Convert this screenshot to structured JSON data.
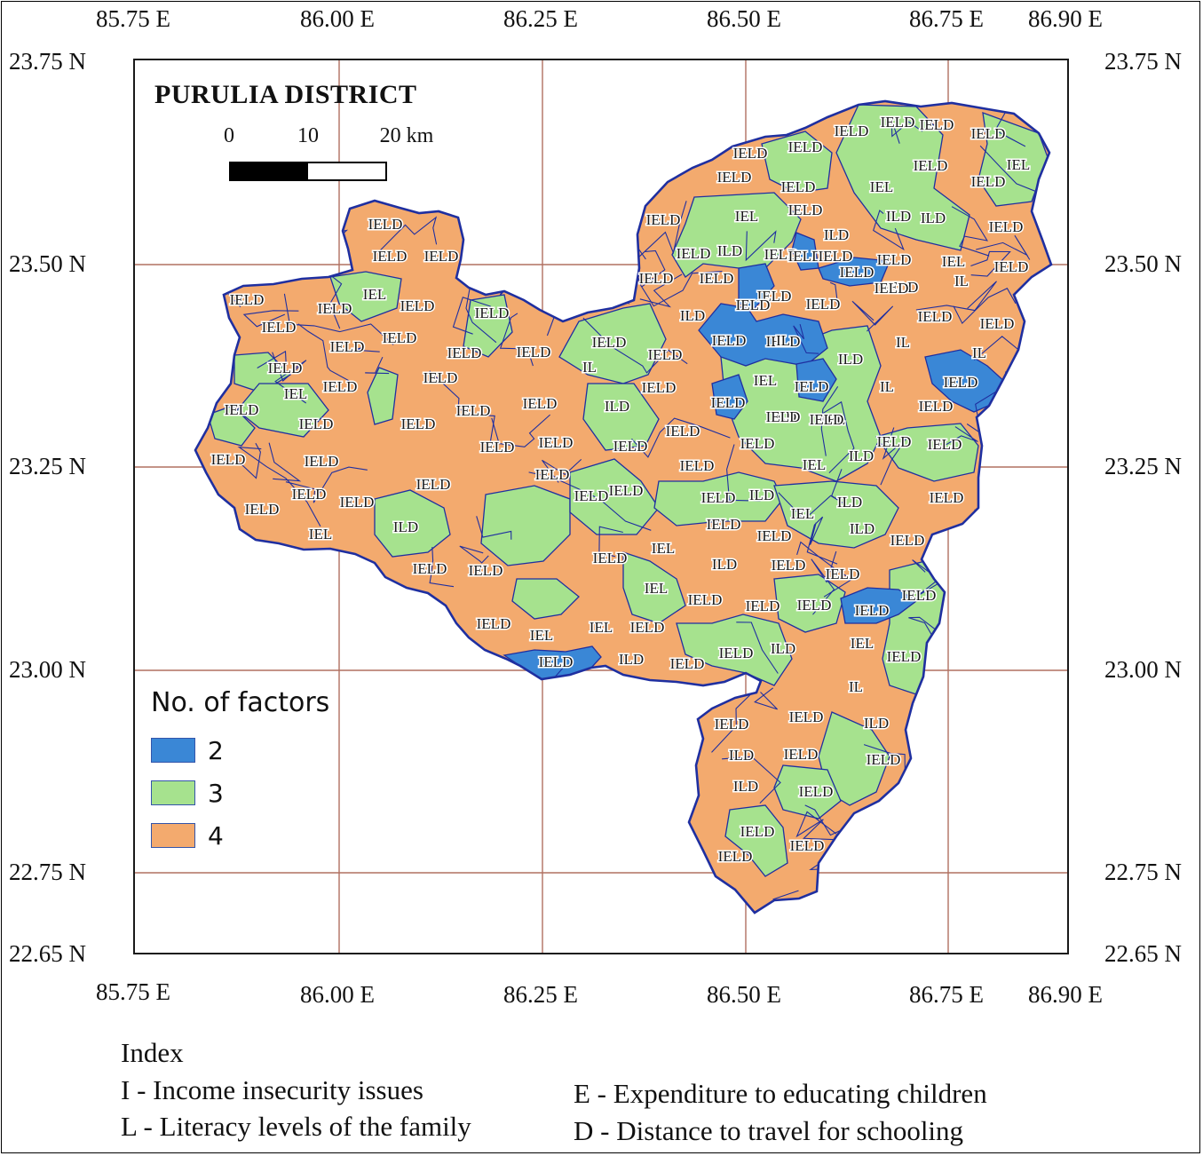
{
  "map": {
    "title": "PURULIA DISTRICT",
    "scale_bar": {
      "labels": [
        "0",
        "10",
        "20 km"
      ]
    },
    "longitude_ticks": [
      "85.75 E",
      "86.00 E",
      "86.25 E",
      "86.50 E",
      "86.75 E",
      "86.90 E"
    ],
    "latitude_ticks": [
      "23.75 N",
      "23.50 N",
      "23.25 N",
      "23.00 N",
      "22.75 N",
      "22.65 N"
    ],
    "gridline_color": "#b07060",
    "boundary_color": "#1f2fa0"
  },
  "legend": {
    "title": "No. of factors",
    "items": [
      {
        "label": "2",
        "color": "#3a87d6"
      },
      {
        "label": "3",
        "color": "#a6e28e"
      },
      {
        "label": "4",
        "color": "#f3aa6e"
      }
    ]
  },
  "index": {
    "heading": "Index",
    "entries": [
      "I -  Income insecurity issues",
      "L - Literacy levels of the family",
      "E - Expenditure to educating children",
      "D - Distance to travel for schooling"
    ]
  },
  "region_labels": [
    "IELD",
    "IELD",
    "IELD",
    "IELD",
    "IEL",
    "IELD",
    "IELD",
    "IELD",
    "IELD",
    "IELD",
    "IELD",
    "IELD",
    "IELD",
    "IELD",
    "IELD",
    "IEL",
    "IELD",
    "IELD",
    "IELD",
    "IELD",
    "IELD",
    "IELD",
    "IELD",
    "IELD",
    "IELD",
    "IELD",
    "IELD",
    "IELD",
    "ILD",
    "IELD",
    "IELD",
    "IELD",
    "IEL",
    "IELD",
    "IELD",
    "IELD",
    "IEL",
    "IELD",
    "IELD",
    "IELD",
    "IELD",
    "IELD",
    "IL",
    "IELD",
    "IELD",
    "ILD",
    "IELD",
    "IELD",
    "IELD",
    "IELD",
    "IELD",
    "IELD",
    "IELD",
    "IEL",
    "IEL",
    "ILD",
    "IELD",
    "IELD",
    "IELD",
    "IELD",
    "IEL",
    "IELD",
    "ILD",
    "IELD",
    "IELD",
    "ILD",
    "IELD",
    "IELD",
    "IELD",
    "IELD",
    "IELD",
    "IEL",
    "IELD",
    "ILD",
    "IELD",
    "IELD",
    "IELD",
    "IELD",
    "ILD",
    "IELD",
    "IELD",
    "IELD",
    "IELD",
    "IELD",
    "IELD",
    "IEL",
    "IELD",
    "IELD",
    "IEL",
    "ILD",
    "ILD",
    "IELD",
    "IELD",
    "IL",
    "IELD",
    "IELD",
    "IELD",
    "IL",
    "IL",
    "ILD",
    "IELD",
    "IELD",
    "IL",
    "IELD",
    "ILD",
    "IEL",
    "IELD",
    "IELD",
    "IL",
    "IELD",
    "ILD",
    "IEL",
    "IELD",
    "IEL",
    "ILD",
    "IELD",
    "IELD",
    "IELD",
    "IELD",
    "ILD",
    "IELD",
    "ILD",
    "IEL",
    "ILD",
    "IELD",
    "IELD",
    "IELD",
    "IEL",
    "IL",
    "IELD",
    "IELD",
    "ILD",
    "ILD",
    "IELD",
    "IELD",
    "ILD",
    "IELD",
    "IELD",
    "IELD",
    "IELD",
    "IELD",
    "IELD",
    "IELD",
    "IELD",
    "IELD",
    "IEL",
    "IELD",
    "IELD"
  ]
}
